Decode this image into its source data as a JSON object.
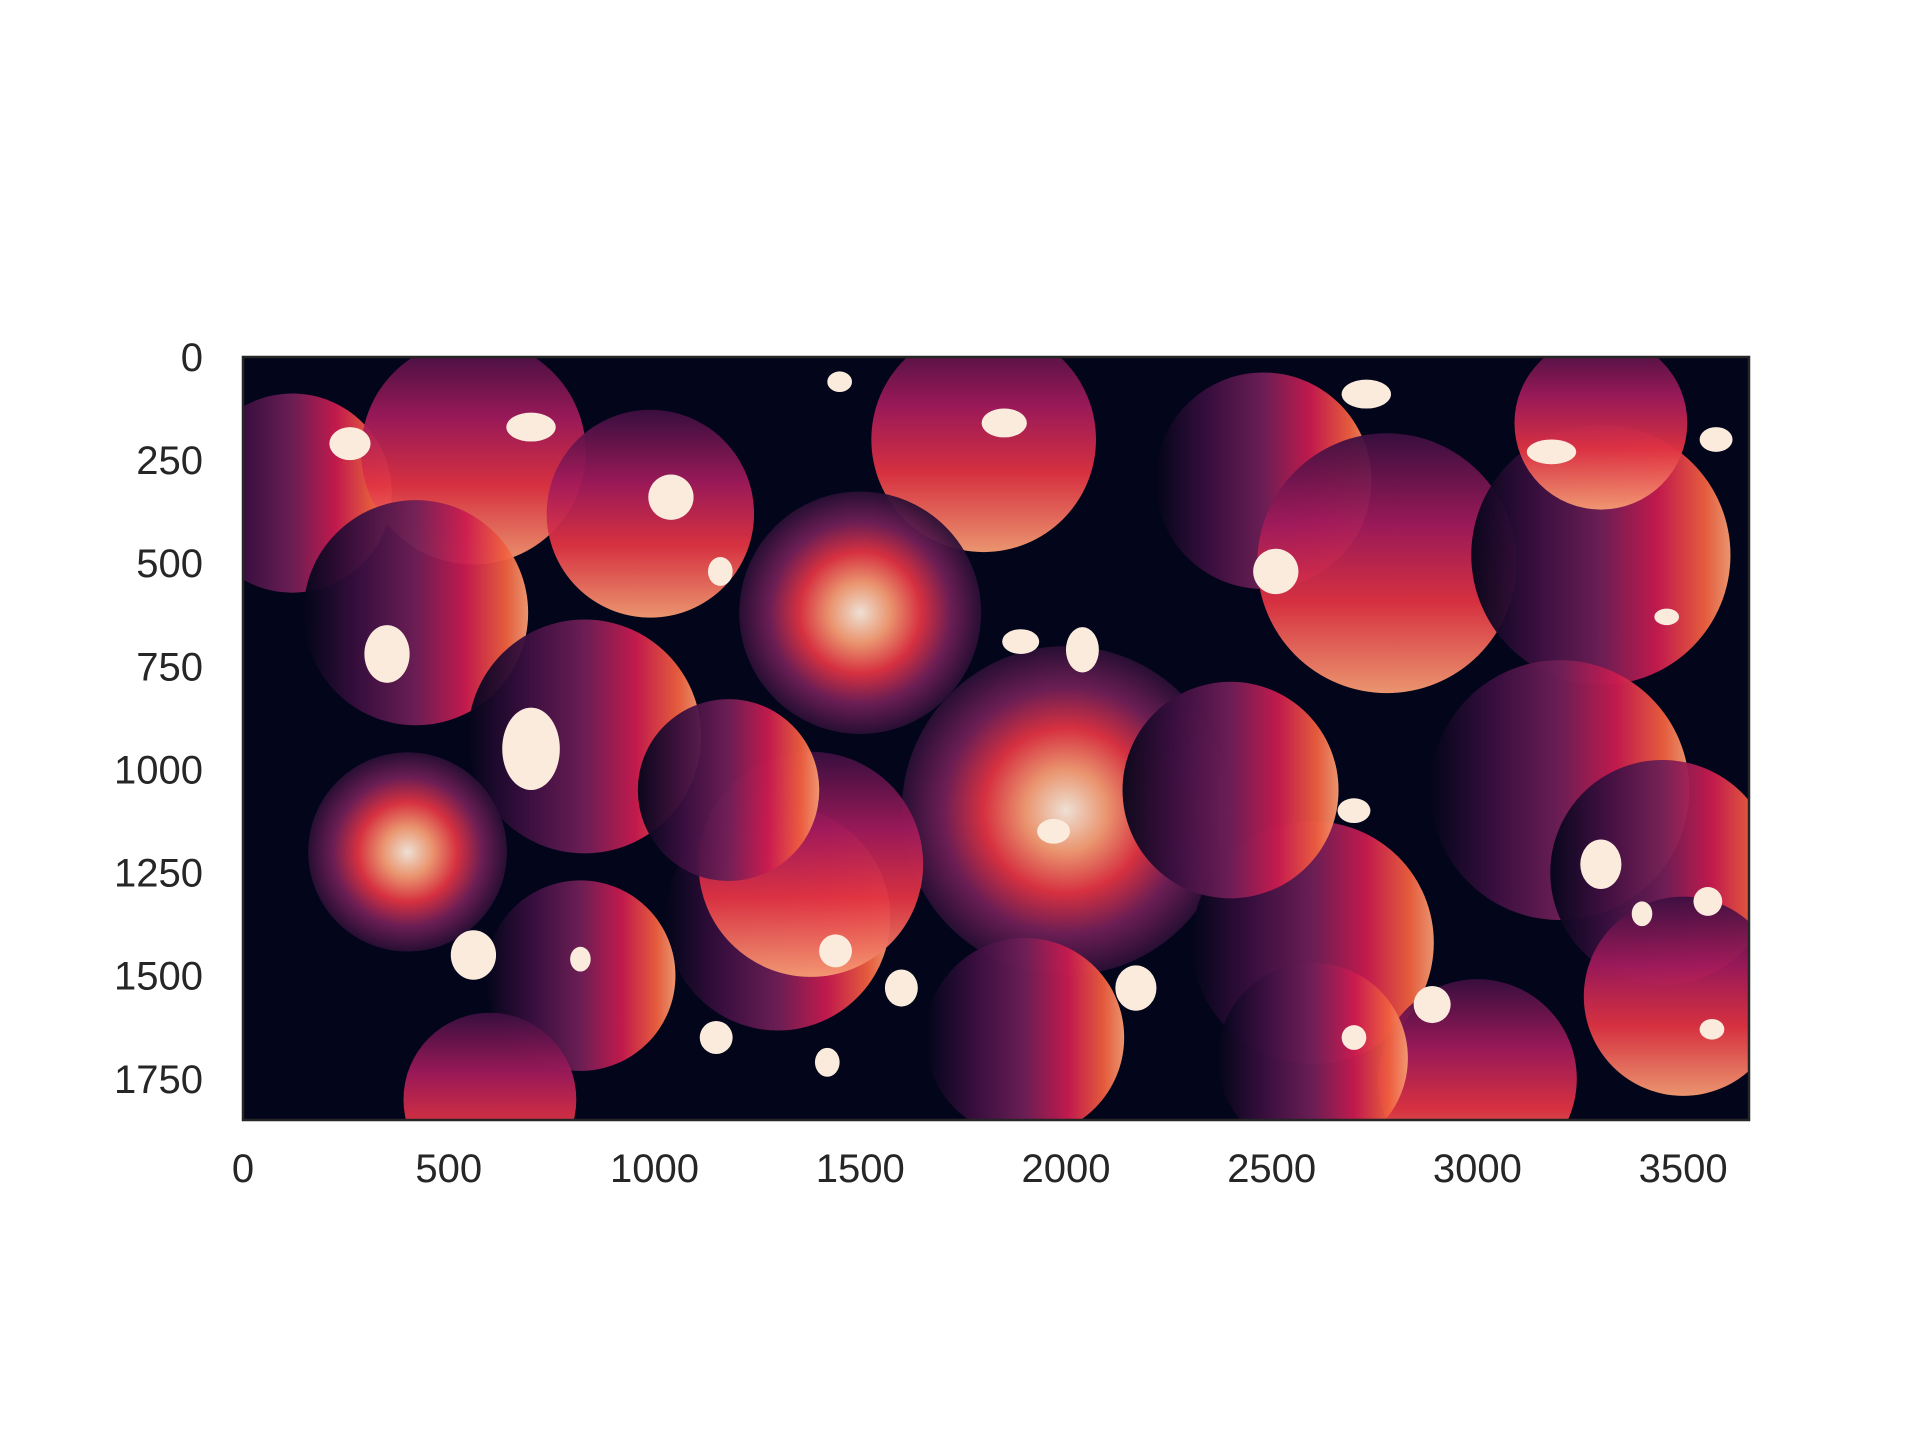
{
  "chart_data": {
    "type": "heatmap",
    "title": "",
    "xlabel": "",
    "ylabel": "",
    "xlim": [
      0,
      3660
    ],
    "ylim": [
      1850,
      0
    ],
    "x_ticks": [
      0,
      500,
      1000,
      1500,
      2000,
      2500,
      3000,
      3500
    ],
    "y_ticks": [
      0,
      250,
      500,
      750,
      1000,
      1250,
      1500,
      1750
    ],
    "x_tick_labels": [
      "0",
      "500",
      "1000",
      "1500",
      "2000",
      "2500",
      "3000",
      "3500"
    ],
    "y_tick_labels": [
      "0",
      "250",
      "500",
      "750",
      "1000",
      "1250",
      "1500",
      "1750"
    ],
    "grid": false,
    "colormap": "rocket",
    "colors": {
      "background": "#03051a",
      "low": "#3b0f40",
      "mid": "#cb1b4f",
      "high": "#f69c73",
      "peak": "#faebdd"
    }
  }
}
